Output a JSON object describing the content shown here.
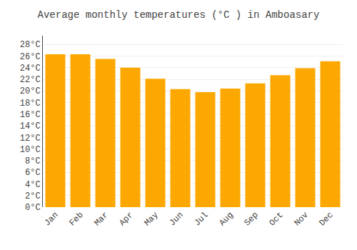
{
  "chart_data": {
    "type": "bar",
    "title": "Average monthly temperatures (°C ) in Amboasary",
    "categories": [
      "Jan",
      "Feb",
      "Mar",
      "Apr",
      "May",
      "Jun",
      "Jul",
      "Aug",
      "Sep",
      "Oct",
      "Nov",
      "Dec"
    ],
    "values": [
      26.3,
      26.3,
      25.5,
      24.0,
      22.1,
      20.3,
      19.8,
      20.4,
      21.3,
      22.7,
      23.9,
      25.1
    ],
    "color": "#FCA800",
    "ylim": [
      0,
      29.5
    ],
    "yticks": [
      {
        "value": 0,
        "label": "0°C"
      },
      {
        "value": 2,
        "label": "2°C"
      },
      {
        "value": 4,
        "label": "4°C"
      },
      {
        "value": 6,
        "label": "6°C"
      },
      {
        "value": 8,
        "label": "8°C"
      },
      {
        "value": 10,
        "label": "10°C"
      },
      {
        "value": 12,
        "label": "12°C"
      },
      {
        "value": 14,
        "label": "14°C"
      },
      {
        "value": 16,
        "label": "16°C"
      },
      {
        "value": 18,
        "label": "18°C"
      },
      {
        "value": 20,
        "label": "20°C"
      },
      {
        "value": 22,
        "label": "22°C"
      },
      {
        "value": 24,
        "label": "24°C"
      },
      {
        "value": 26,
        "label": "26°C"
      },
      {
        "value": 28,
        "label": "28°C"
      }
    ],
    "grid": true
  }
}
